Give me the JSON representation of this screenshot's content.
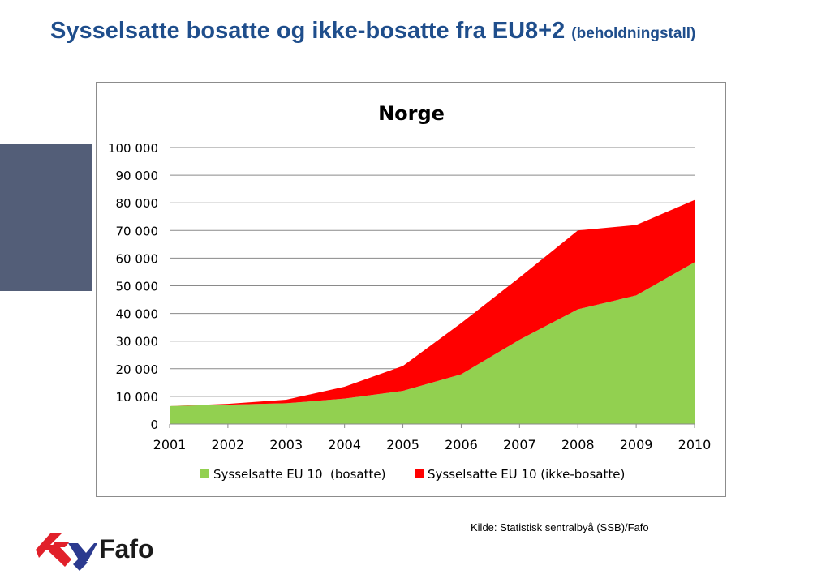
{
  "title": {
    "main": "Sysselsatte bosatte og ikke-bosatte fra EU8+2",
    "sub": "(beholdningstall)"
  },
  "source": "Kilde: Statistisk sentralbyå (SSB)/Fafo",
  "logo": {
    "text": "Fafo",
    "colors": {
      "red": "#e1202a",
      "blue": "#2b3a8f"
    }
  },
  "colors": {
    "title": "#1f4e8c",
    "side_block": "#535e78"
  },
  "chart_data": {
    "type": "area",
    "stacked": true,
    "title": "Norge",
    "x": [
      "2001",
      "2002",
      "2003",
      "2004",
      "2005",
      "2006",
      "2007",
      "2008",
      "2009",
      "2010"
    ],
    "y_ticks": [
      "0",
      "10 000",
      "20 000",
      "30 000",
      "40 000",
      "50 000",
      "60 000",
      "70 000",
      "80 000",
      "90 000",
      "100 000"
    ],
    "ylim": [
      0,
      100000
    ],
    "grid": true,
    "legend_position": "bottom",
    "series": [
      {
        "name": "Sysselsatte EU 10  (bosatte)",
        "color": "#92d050",
        "values": [
          6500,
          7000,
          7500,
          9200,
          12000,
          18000,
          30500,
          41500,
          46500,
          58500
        ]
      },
      {
        "name": "Sysselsatte EU 10 (ikke-bosatte)",
        "color": "#ff0000",
        "values": [
          0,
          300,
          1300,
          4300,
          9000,
          18500,
          22500,
          28500,
          25500,
          22500
        ]
      }
    ]
  }
}
